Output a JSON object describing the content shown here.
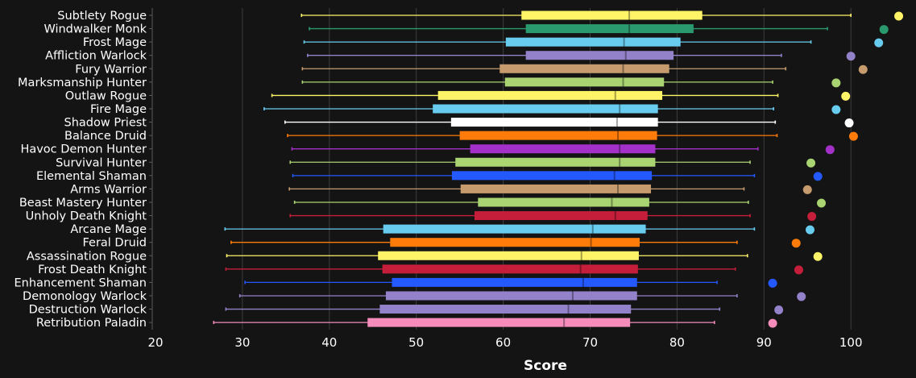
{
  "chart_data": {
    "type": "box",
    "xlabel": "Score",
    "xlim": [
      20,
      106
    ],
    "xticks": [
      20,
      30,
      40,
      50,
      60,
      70,
      80,
      90,
      100
    ],
    "grid": "vertical",
    "series": [
      {
        "name": "Subtlety Rogue",
        "color": "#fff468",
        "min": 36.8,
        "q1": 62.1,
        "median": 74.5,
        "q3": 82.9,
        "max": 100.0,
        "top": 105.5
      },
      {
        "name": "Windwalker Monk",
        "color": "#2a9a6e",
        "min": 37.7,
        "q1": 62.6,
        "median": 74.5,
        "q3": 81.9,
        "max": 97.3,
        "top": 103.8
      },
      {
        "name": "Frost Mage",
        "color": "#68ccef",
        "min": 37.1,
        "q1": 60.3,
        "median": 73.9,
        "q3": 80.4,
        "max": 95.4,
        "top": 103.2
      },
      {
        "name": "Affliction Warlock",
        "color": "#9382c9",
        "min": 37.5,
        "q1": 62.6,
        "median": 74.1,
        "q3": 79.6,
        "max": 92.0,
        "top": 100.0
      },
      {
        "name": "Fury Warrior",
        "color": "#c69b6d",
        "min": 36.9,
        "q1": 59.6,
        "median": 73.8,
        "q3": 79.1,
        "max": 92.5,
        "top": 101.4
      },
      {
        "name": "Marksmanship Hunter",
        "color": "#aad372",
        "min": 36.9,
        "q1": 60.2,
        "median": 73.8,
        "q3": 78.5,
        "max": 91.0,
        "top": 98.3
      },
      {
        "name": "Outlaw Rogue",
        "color": "#fff468",
        "min": 33.4,
        "q1": 52.5,
        "median": 72.9,
        "q3": 78.3,
        "max": 91.6,
        "top": 99.4
      },
      {
        "name": "Fire Mage",
        "color": "#68ccef",
        "min": 32.5,
        "q1": 51.9,
        "median": 73.4,
        "q3": 77.8,
        "max": 91.1,
        "top": 98.3
      },
      {
        "name": "Shadow Priest",
        "color": "#ffffff",
        "min": 34.9,
        "q1": 54.0,
        "median": 73.1,
        "q3": 77.8,
        "max": 91.3,
        "top": 99.8
      },
      {
        "name": "Balance Druid",
        "color": "#ff7c0a",
        "min": 35.2,
        "q1": 55.0,
        "median": 73.2,
        "q3": 77.7,
        "max": 91.5,
        "top": 100.3
      },
      {
        "name": "Havoc Demon Hunter",
        "color": "#a330c9",
        "min": 35.7,
        "q1": 56.2,
        "median": 73.4,
        "q3": 77.5,
        "max": 89.3,
        "top": 97.6
      },
      {
        "name": "Survival Hunter",
        "color": "#aad372",
        "min": 35.5,
        "q1": 54.5,
        "median": 73.4,
        "q3": 77.5,
        "max": 88.4,
        "top": 95.4
      },
      {
        "name": "Elemental Shaman",
        "color": "#2459ff",
        "min": 35.8,
        "q1": 54.1,
        "median": 72.8,
        "q3": 77.1,
        "max": 88.9,
        "top": 96.2
      },
      {
        "name": "Arms Warrior",
        "color": "#c69b6d",
        "min": 35.4,
        "q1": 55.1,
        "median": 73.2,
        "q3": 77.0,
        "max": 87.7,
        "top": 95.0
      },
      {
        "name": "Beast Mastery Hunter",
        "color": "#aad372",
        "min": 36.0,
        "q1": 57.1,
        "median": 72.5,
        "q3": 76.8,
        "max": 88.2,
        "top": 96.6
      },
      {
        "name": "Unholy Death Knight",
        "color": "#c41e3a",
        "min": 35.5,
        "q1": 56.7,
        "median": 72.9,
        "q3": 76.6,
        "max": 88.4,
        "top": 95.5
      },
      {
        "name": "Arcane Mage",
        "color": "#68ccef",
        "min": 28.0,
        "q1": 46.2,
        "median": 70.3,
        "q3": 76.4,
        "max": 88.9,
        "top": 95.3
      },
      {
        "name": "Feral Druid",
        "color": "#ff7c0a",
        "min": 28.7,
        "q1": 47.0,
        "median": 70.1,
        "q3": 75.7,
        "max": 86.9,
        "top": 93.7
      },
      {
        "name": "Assassination Rogue",
        "color": "#fff468",
        "min": 28.2,
        "q1": 45.6,
        "median": 69.0,
        "q3": 75.6,
        "max": 88.1,
        "top": 96.2
      },
      {
        "name": "Frost Death Knight",
        "color": "#c41e3a",
        "min": 28.1,
        "q1": 46.1,
        "median": 68.9,
        "q3": 75.5,
        "max": 86.7,
        "top": 94.0
      },
      {
        "name": "Enhancement Shaman",
        "color": "#2459ff",
        "min": 30.3,
        "q1": 47.2,
        "median": 69.2,
        "q3": 75.4,
        "max": 84.6,
        "top": 91.0
      },
      {
        "name": "Demonology Warlock",
        "color": "#9382c9",
        "min": 29.7,
        "q1": 46.5,
        "median": 68.0,
        "q3": 75.4,
        "max": 86.9,
        "top": 94.3
      },
      {
        "name": "Destruction Warlock",
        "color": "#9382c9",
        "min": 28.1,
        "q1": 45.8,
        "median": 67.5,
        "q3": 74.7,
        "max": 84.9,
        "top": 91.7
      },
      {
        "name": "Retribution Paladin",
        "color": "#f58cba",
        "min": 26.7,
        "q1": 44.4,
        "median": 67.0,
        "q3": 74.6,
        "max": 84.3,
        "top": 91.0
      }
    ]
  }
}
